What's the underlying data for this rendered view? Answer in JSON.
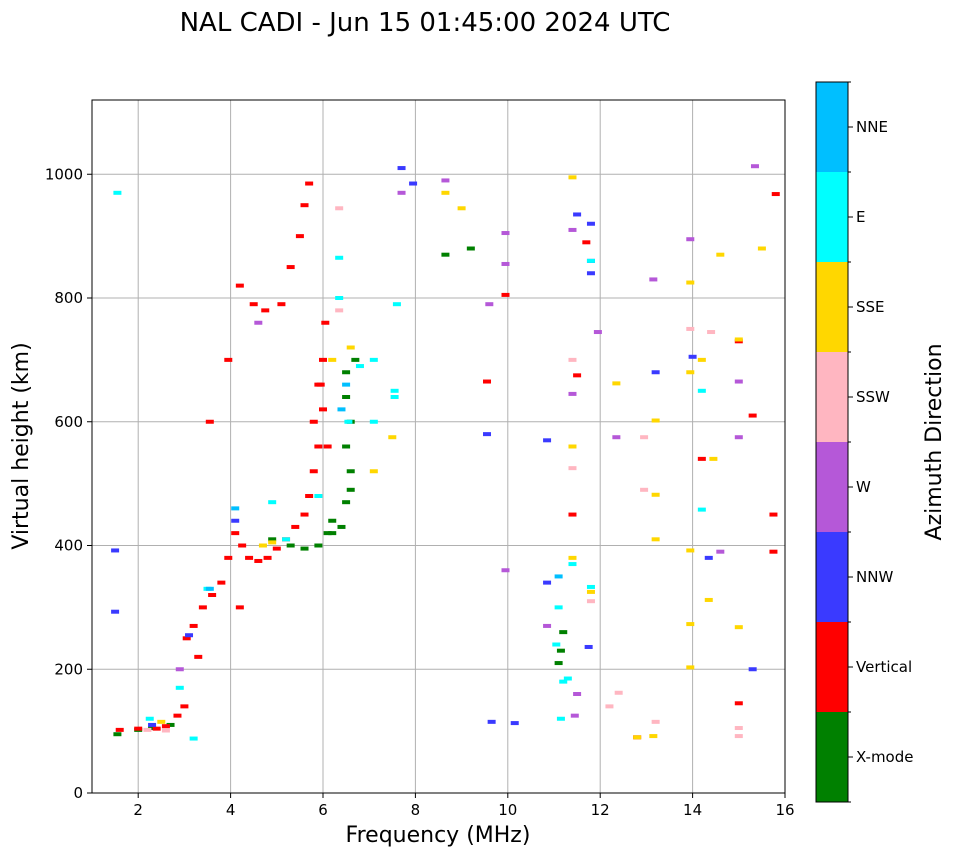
{
  "chart_data": {
    "type": "scatter",
    "title": "NAL CADI - Jun 15 01:45:00 2024 UTC",
    "xlabel": "Frequency (MHz)",
    "ylabel": "Virtual height (km)",
    "xlim": [
      1,
      16
    ],
    "ylim": [
      0,
      1120
    ],
    "xticks": [
      2,
      4,
      6,
      8,
      10,
      12,
      14,
      16
    ],
    "yticks": [
      0,
      200,
      400,
      600,
      800,
      1000
    ],
    "grid": true,
    "colorbar": {
      "label": "Azimuth Direction",
      "categories": [
        {
          "name": "X-mode",
          "color": "#008000"
        },
        {
          "name": "Vertical",
          "color": "#ff0000"
        },
        {
          "name": "NNW",
          "color": "#3a3aff"
        },
        {
          "name": "W",
          "color": "#b558d8"
        },
        {
          "name": "SSW",
          "color": "#ffb6c1"
        },
        {
          "name": "SSE",
          "color": "#ffd700"
        },
        {
          "name": "E",
          "color": "#00ffff"
        },
        {
          "name": "NNE",
          "color": "#00bfff"
        }
      ]
    },
    "series": [
      {
        "name": "X-mode",
        "points": [
          [
            1.55,
            95
          ],
          [
            2.0,
            102
          ],
          [
            2.3,
            105
          ],
          [
            2.7,
            110
          ],
          [
            4.9,
            410
          ],
          [
            5.3,
            400
          ],
          [
            5.6,
            395
          ],
          [
            5.9,
            400
          ],
          [
            6.1,
            420
          ],
          [
            6.2,
            440
          ],
          [
            6.5,
            470
          ],
          [
            6.6,
            490
          ],
          [
            6.6,
            520
          ],
          [
            6.5,
            560
          ],
          [
            6.6,
            600
          ],
          [
            6.5,
            640
          ],
          [
            6.5,
            680
          ],
          [
            6.7,
            700
          ],
          [
            6.2,
            420
          ],
          [
            6.4,
            430
          ],
          [
            8.65,
            870
          ],
          [
            9.2,
            880
          ],
          [
            11.1,
            210
          ],
          [
            11.15,
            230
          ],
          [
            11.2,
            260
          ]
        ]
      },
      {
        "name": "Vertical",
        "points": [
          [
            1.6,
            102
          ],
          [
            2.0,
            104
          ],
          [
            2.4,
            104
          ],
          [
            2.6,
            108
          ],
          [
            2.85,
            125
          ],
          [
            3.0,
            140
          ],
          [
            3.05,
            250
          ],
          [
            3.2,
            270
          ],
          [
            3.4,
            300
          ],
          [
            3.6,
            320
          ],
          [
            3.8,
            340
          ],
          [
            3.95,
            380
          ],
          [
            4.1,
            420
          ],
          [
            4.25,
            400
          ],
          [
            4.4,
            380
          ],
          [
            4.6,
            375
          ],
          [
            4.8,
            380
          ],
          [
            5.0,
            395
          ],
          [
            5.2,
            410
          ],
          [
            5.4,
            430
          ],
          [
            5.6,
            450
          ],
          [
            5.7,
            480
          ],
          [
            5.8,
            520
          ],
          [
            5.9,
            560
          ],
          [
            6.0,
            620
          ],
          [
            5.95,
            660
          ],
          [
            6.0,
            700
          ],
          [
            6.05,
            760
          ],
          [
            5.9,
            660
          ],
          [
            5.8,
            600
          ],
          [
            6.1,
            560
          ],
          [
            4.2,
            820
          ],
          [
            4.5,
            790
          ],
          [
            4.75,
            780
          ],
          [
            5.1,
            790
          ],
          [
            5.3,
            850
          ],
          [
            5.5,
            900
          ],
          [
            5.6,
            950
          ],
          [
            5.7,
            985
          ],
          [
            3.95,
            700
          ],
          [
            3.55,
            600
          ],
          [
            4.2,
            300
          ],
          [
            3.3,
            220
          ],
          [
            9.55,
            665
          ],
          [
            9.95,
            805
          ],
          [
            11.5,
            675
          ],
          [
            11.4,
            450
          ],
          [
            11.7,
            890
          ],
          [
            14.2,
            540
          ],
          [
            15.0,
            730
          ],
          [
            15.3,
            610
          ],
          [
            15.75,
            450
          ],
          [
            15.75,
            390
          ],
          [
            15.8,
            968
          ],
          [
            15.0,
            145
          ],
          [
            12.8,
            90
          ]
        ]
      },
      {
        "name": "NNW",
        "points": [
          [
            1.5,
            392
          ],
          [
            1.5,
            293
          ],
          [
            2.3,
            110
          ],
          [
            3.1,
            255
          ],
          [
            4.1,
            440
          ],
          [
            7.7,
            1010
          ],
          [
            7.95,
            985
          ],
          [
            9.55,
            580
          ],
          [
            9.65,
            115
          ],
          [
            10.15,
            113
          ],
          [
            10.85,
            570
          ],
          [
            10.85,
            340
          ],
          [
            11.5,
            935
          ],
          [
            11.8,
            920
          ],
          [
            11.8,
            860
          ],
          [
            11.8,
            840
          ],
          [
            11.75,
            236
          ],
          [
            13.2,
            680
          ],
          [
            14.0,
            705
          ],
          [
            14.35,
            380
          ],
          [
            15.3,
            200
          ]
        ]
      },
      {
        "name": "W",
        "points": [
          [
            2.9,
            200
          ],
          [
            4.6,
            760
          ],
          [
            7.7,
            970
          ],
          [
            8.65,
            990
          ],
          [
            9.95,
            905
          ],
          [
            9.95,
            855
          ],
          [
            9.6,
            790
          ],
          [
            9.95,
            360
          ],
          [
            10.85,
            270
          ],
          [
            11.4,
            910
          ],
          [
            11.4,
            645
          ],
          [
            11.5,
            160
          ],
          [
            11.45,
            125
          ],
          [
            11.95,
            745
          ],
          [
            12.35,
            575
          ],
          [
            13.15,
            830
          ],
          [
            13.95,
            895
          ],
          [
            14.6,
            390
          ],
          [
            15.0,
            665
          ],
          [
            15.0,
            575
          ],
          [
            15.35,
            1013
          ]
        ]
      },
      {
        "name": "SSW",
        "points": [
          [
            2.2,
            102
          ],
          [
            2.6,
            101
          ],
          [
            6.35,
            945
          ],
          [
            6.35,
            780
          ],
          [
            11.4,
            700
          ],
          [
            11.4,
            525
          ],
          [
            11.8,
            310
          ],
          [
            12.4,
            162
          ],
          [
            12.2,
            140
          ],
          [
            12.95,
            490
          ],
          [
            12.95,
            575
          ],
          [
            13.2,
            115
          ],
          [
            13.95,
            750
          ],
          [
            14.4,
            745
          ],
          [
            15.0,
            105
          ],
          [
            15.0,
            92
          ]
        ]
      },
      {
        "name": "SSE",
        "points": [
          [
            2.5,
            115
          ],
          [
            4.7,
            400
          ],
          [
            4.9,
            405
          ],
          [
            6.2,
            700
          ],
          [
            6.6,
            720
          ],
          [
            7.1,
            520
          ],
          [
            7.5,
            575
          ],
          [
            8.65,
            970
          ],
          [
            9.0,
            945
          ],
          [
            11.4,
            995
          ],
          [
            11.4,
            560
          ],
          [
            11.4,
            380
          ],
          [
            11.8,
            325
          ],
          [
            12.35,
            662
          ],
          [
            12.8,
            90
          ],
          [
            13.15,
            92
          ],
          [
            13.2,
            602
          ],
          [
            13.2,
            482
          ],
          [
            13.2,
            410
          ],
          [
            13.95,
            825
          ],
          [
            13.95,
            680
          ],
          [
            13.95,
            392
          ],
          [
            13.95,
            273
          ],
          [
            13.95,
            203
          ],
          [
            14.2,
            700
          ],
          [
            14.35,
            312
          ],
          [
            14.45,
            540
          ],
          [
            14.6,
            870
          ],
          [
            15.0,
            733
          ],
          [
            15.0,
            268
          ],
          [
            15.5,
            880
          ]
        ]
      },
      {
        "name": "E",
        "points": [
          [
            1.55,
            970
          ],
          [
            2.25,
            120
          ],
          [
            2.9,
            170
          ],
          [
            3.2,
            88
          ],
          [
            3.5,
            330
          ],
          [
            4.9,
            470
          ],
          [
            5.2,
            410
          ],
          [
            5.9,
            480
          ],
          [
            6.35,
            865
          ],
          [
            6.35,
            800
          ],
          [
            6.55,
            600
          ],
          [
            6.8,
            690
          ],
          [
            7.1,
            600
          ],
          [
            7.1,
            700
          ],
          [
            7.55,
            650
          ],
          [
            7.55,
            640
          ],
          [
            7.6,
            790
          ],
          [
            11.05,
            240
          ],
          [
            11.1,
            300
          ],
          [
            11.2,
            180
          ],
          [
            11.15,
            120
          ],
          [
            11.3,
            185
          ],
          [
            11.4,
            370
          ],
          [
            11.8,
            860
          ],
          [
            11.8,
            333
          ],
          [
            14.2,
            650
          ],
          [
            14.2,
            458
          ]
        ]
      },
      {
        "name": "NNE",
        "points": [
          [
            3.55,
            330
          ],
          [
            4.1,
            460
          ],
          [
            6.4,
            620
          ],
          [
            6.5,
            660
          ],
          [
            11.1,
            350
          ]
        ]
      }
    ]
  }
}
